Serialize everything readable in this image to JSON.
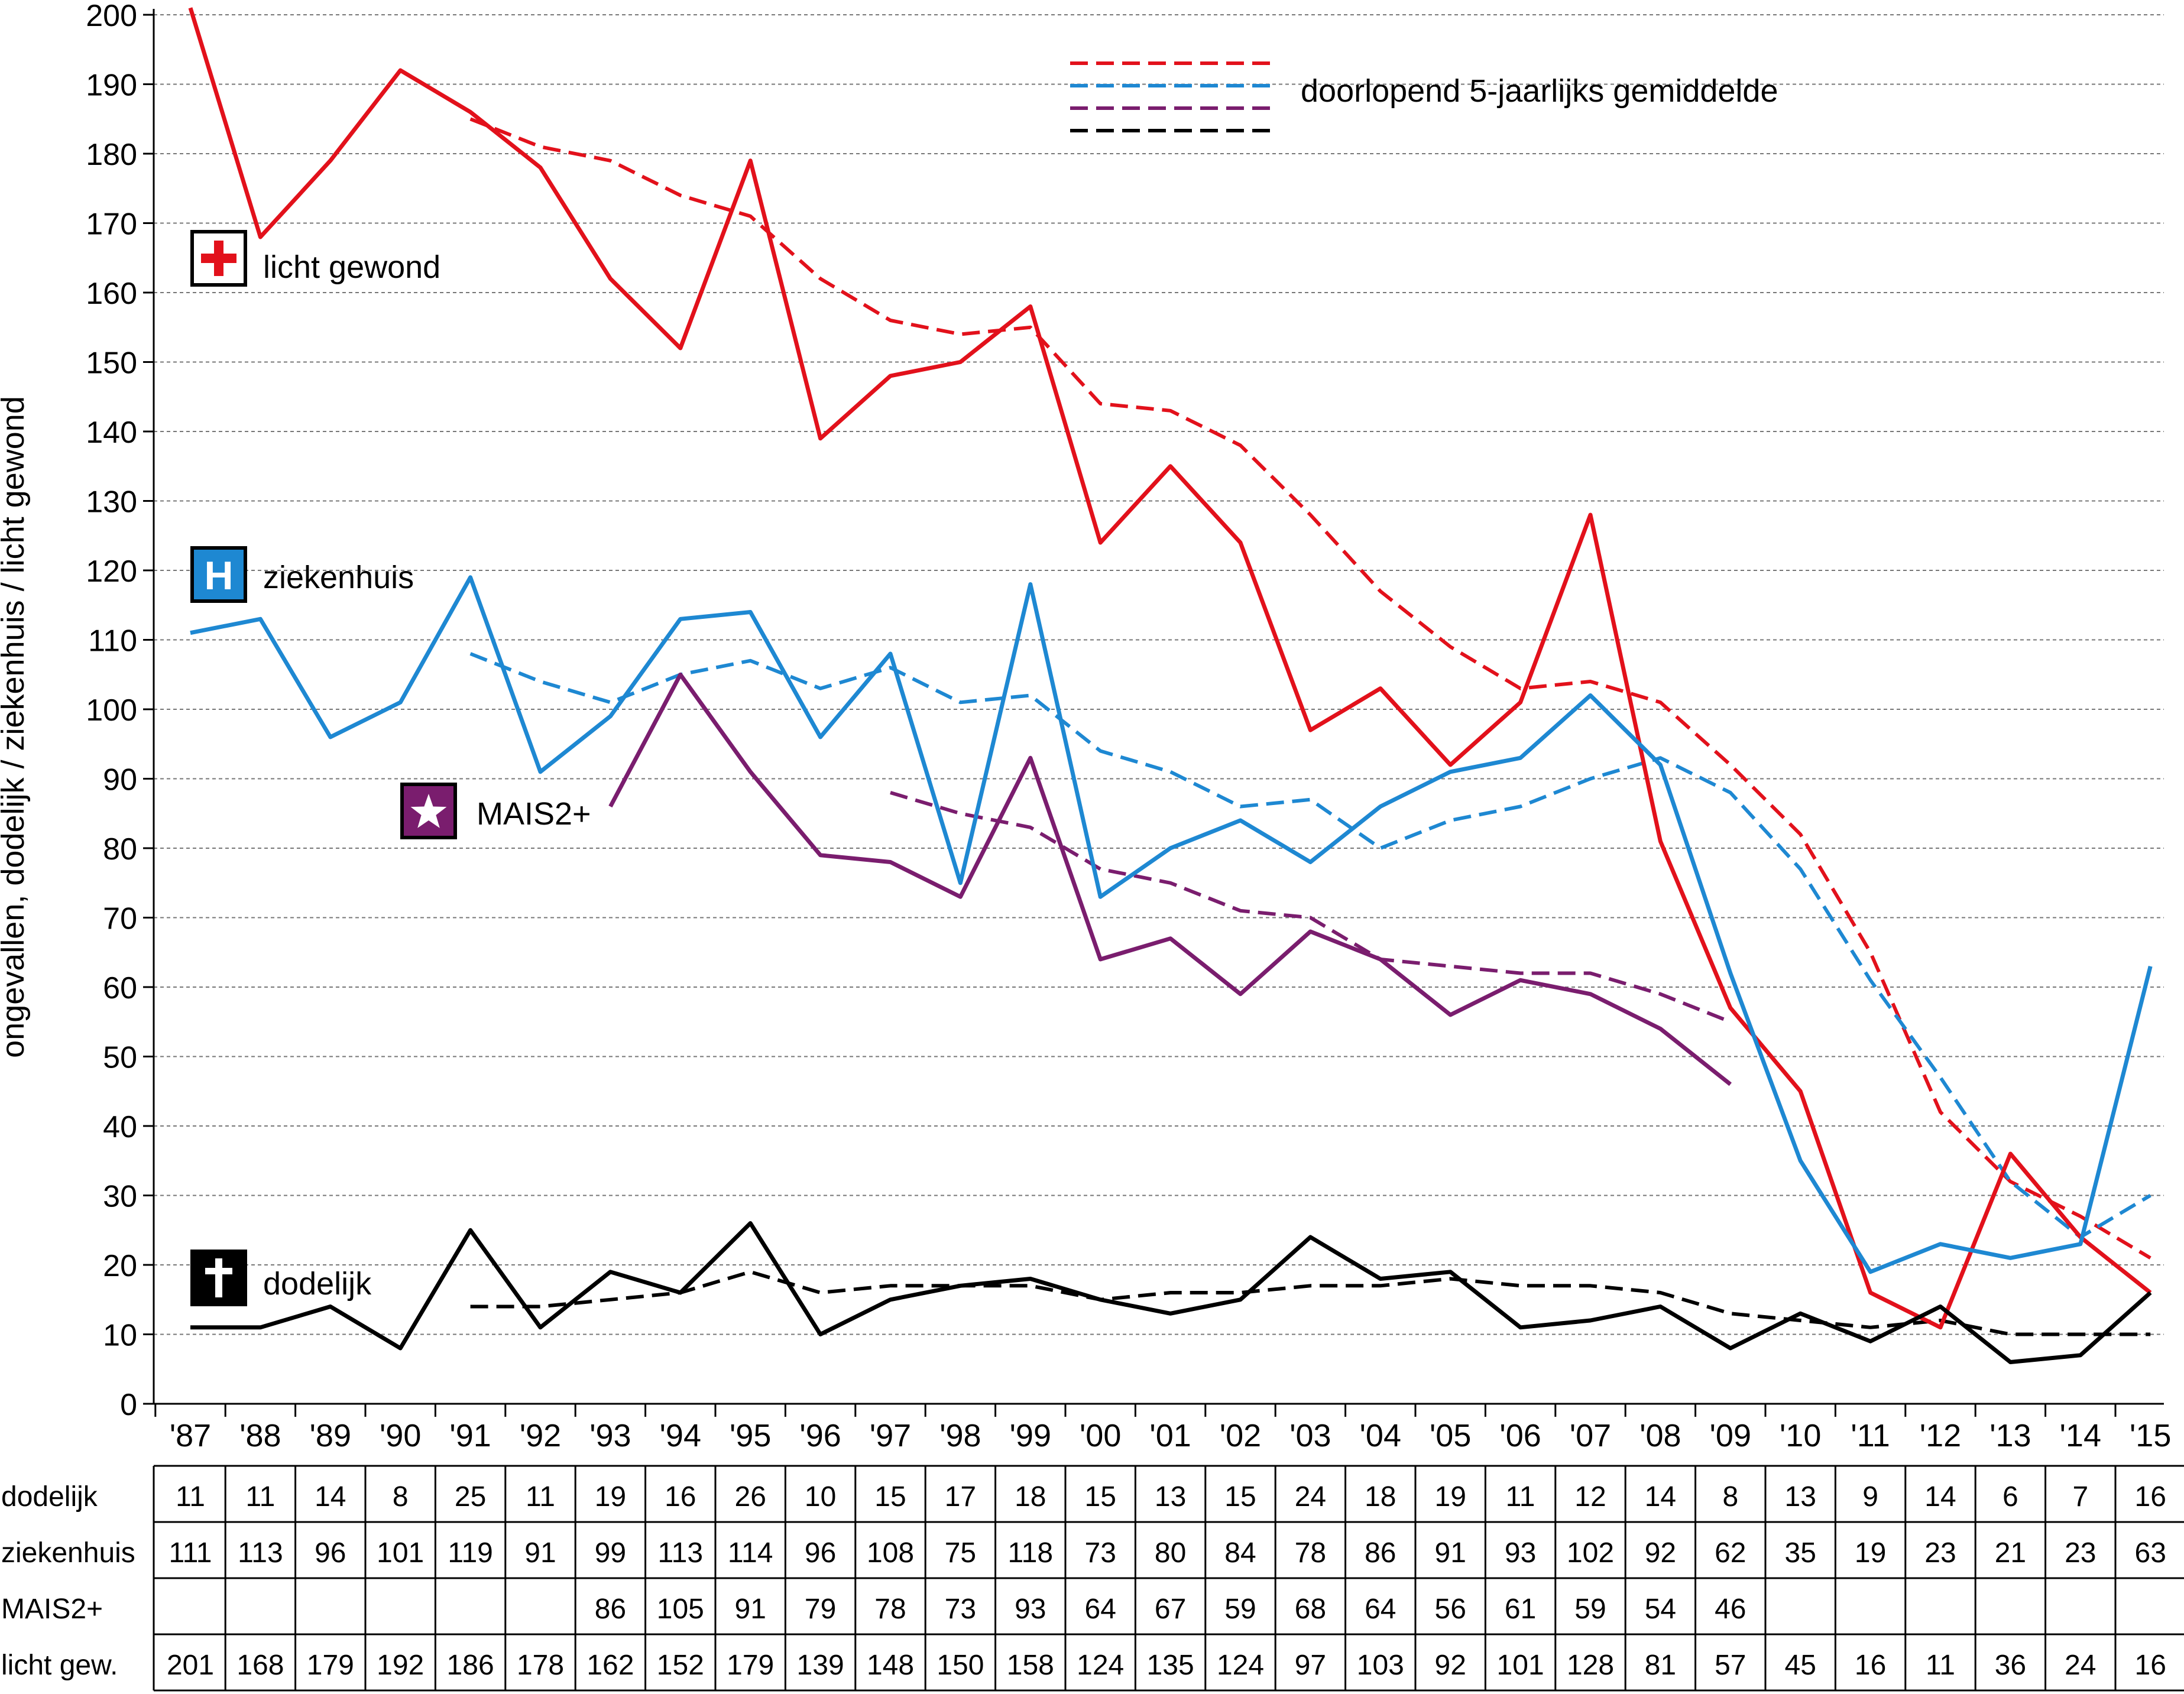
{
  "chart_data": {
    "type": "line",
    "ylabel": "ongevallen, dodelijk / ziekenhuis / licht gewond",
    "ylim": [
      0,
      200
    ],
    "ytick_step": 10,
    "grid": "horizontal-dashed",
    "categories": [
      "'87",
      "'88",
      "'89",
      "'90",
      "'91",
      "'92",
      "'93",
      "'94",
      "'95",
      "'96",
      "'97",
      "'98",
      "'99",
      "'00",
      "'01",
      "'02",
      "'03",
      "'04",
      "'05",
      "'06",
      "'07",
      "'08",
      "'09",
      "'10",
      "'11",
      "'12",
      "'13",
      "'14",
      "'15"
    ],
    "legend": {
      "label": "doorlopend 5-jaarlijks gemiddelde",
      "placement": "top-right",
      "colors": [
        "#e2111b",
        "#1e88d2",
        "#7a1d6e",
        "#000000"
      ]
    },
    "series": [
      {
        "name": "licht gewond",
        "icon": "red-cross-icon",
        "color": "#e2111b",
        "values": [
          201,
          168,
          179,
          192,
          186,
          178,
          162,
          152,
          179,
          139,
          148,
          150,
          158,
          124,
          135,
          124,
          97,
          103,
          92,
          101,
          128,
          81,
          57,
          45,
          16,
          11,
          36,
          24,
          16
        ],
        "moving_avg": [
          null,
          null,
          null,
          null,
          185,
          181,
          179,
          174,
          171,
          162,
          156,
          154,
          155,
          144,
          143,
          138,
          128,
          117,
          109,
          103,
          104,
          101,
          92,
          82,
          65,
          42,
          32,
          27,
          21
        ]
      },
      {
        "name": "ziekenhuis",
        "icon": "hospital-h-icon",
        "color": "#1e88d2",
        "values": [
          111,
          113,
          96,
          101,
          119,
          91,
          99,
          113,
          114,
          96,
          108,
          75,
          118,
          73,
          80,
          84,
          78,
          86,
          91,
          93,
          102,
          92,
          62,
          35,
          19,
          23,
          21,
          23,
          63
        ],
        "moving_avg": [
          null,
          null,
          null,
          null,
          108,
          104,
          101,
          105,
          107,
          103,
          106,
          101,
          102,
          94,
          91,
          86,
          87,
          80,
          84,
          86,
          90,
          93,
          88,
          77,
          61,
          47,
          32,
          24,
          30
        ]
      },
      {
        "name": "MAIS2+",
        "icon": "star-icon",
        "color": "#7a1d6e",
        "values": [
          null,
          null,
          null,
          null,
          null,
          null,
          86,
          105,
          91,
          79,
          78,
          73,
          93,
          64,
          67,
          59,
          68,
          64,
          56,
          61,
          59,
          54,
          46,
          null,
          null,
          null,
          null,
          null,
          null
        ],
        "moving_avg": [
          null,
          null,
          null,
          null,
          null,
          null,
          null,
          null,
          null,
          null,
          88,
          85,
          83,
          77,
          75,
          71,
          70,
          64,
          63,
          62,
          62,
          59,
          55,
          null,
          null,
          null,
          null,
          null,
          null
        ]
      },
      {
        "name": "dodelijk",
        "icon": "cross-icon",
        "color": "#000000",
        "values": [
          11,
          11,
          14,
          8,
          25,
          11,
          19,
          16,
          26,
          10,
          15,
          17,
          18,
          15,
          13,
          15,
          24,
          18,
          19,
          11,
          12,
          14,
          8,
          13,
          9,
          14,
          6,
          7,
          16
        ],
        "moving_avg": [
          null,
          null,
          null,
          null,
          14,
          14,
          15,
          16,
          19,
          16,
          17,
          17,
          17,
          15,
          16,
          16,
          17,
          17,
          18,
          17,
          17,
          16,
          13,
          12,
          11,
          12,
          10,
          10,
          10
        ]
      }
    ],
    "table": {
      "row_labels": [
        "dodelijk",
        "ziekenhuis",
        "MAIS2+",
        "licht gew."
      ],
      "rows": [
        [
          "11",
          "11",
          "14",
          "8",
          "25",
          "11",
          "19",
          "16",
          "26",
          "10",
          "15",
          "17",
          "18",
          "15",
          "13",
          "15",
          "24",
          "18",
          "19",
          "11",
          "12",
          "14",
          "8",
          "13",
          "9",
          "14",
          "6",
          "7",
          "16"
        ],
        [
          "111",
          "113",
          "96",
          "101",
          "119",
          "91",
          "99",
          "113",
          "114",
          "96",
          "108",
          "75",
          "118",
          "73",
          "80",
          "84",
          "78",
          "86",
          "91",
          "93",
          "102",
          "92",
          "62",
          "35",
          "19",
          "23",
          "21",
          "23",
          "63"
        ],
        [
          "",
          "",
          "",
          "",
          "",
          "",
          "86",
          "105",
          "91",
          "79",
          "78",
          "73",
          "93",
          "64",
          "67",
          "59",
          "68",
          "64",
          "56",
          "61",
          "59",
          "54",
          "46",
          "",
          "",
          "",
          "",
          "",
          ""
        ],
        [
          "201",
          "168",
          "179",
          "192",
          "186",
          "178",
          "162",
          "152",
          "179",
          "139",
          "148",
          "150",
          "158",
          "124",
          "135",
          "124",
          "97",
          "103",
          "92",
          "101",
          "128",
          "81",
          "57",
          "45",
          "16",
          "11",
          "36",
          "24",
          "16"
        ]
      ]
    }
  }
}
